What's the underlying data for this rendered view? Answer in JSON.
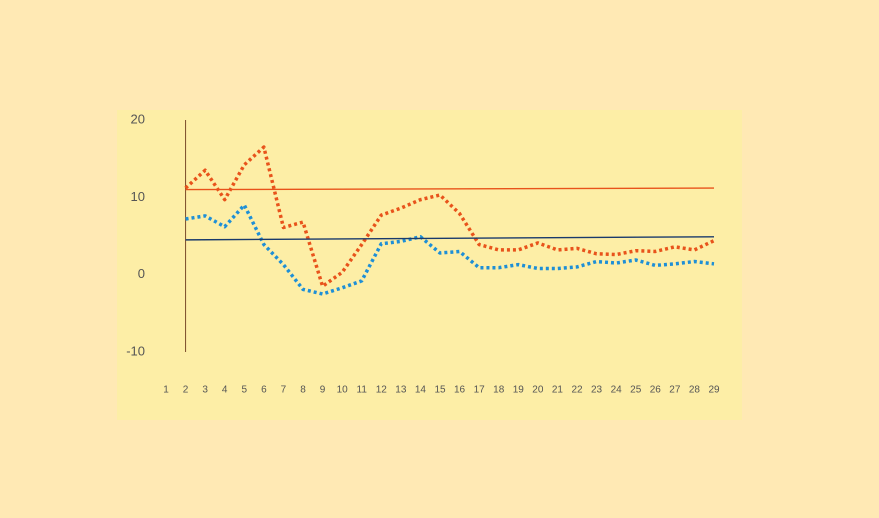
{
  "chart_data": {
    "type": "line",
    "x": [
      1,
      2,
      3,
      4,
      5,
      6,
      7,
      8,
      9,
      10,
      11,
      12,
      13,
      14,
      15,
      16,
      17,
      18,
      19,
      20,
      21,
      22,
      23,
      24,
      25,
      26,
      27,
      28,
      29
    ],
    "xlim": [
      1,
      29
    ],
    "ylim": [
      -10,
      20
    ],
    "yticks": [
      -10,
      0,
      10,
      20
    ],
    "series": [
      {
        "color": "#e8531b",
        "style": "dotted",
        "values": [
          null,
          11.2,
          13.5,
          9.7,
          14.2,
          16.5,
          6.1,
          6.8,
          -1.5,
          0.3,
          3.9,
          7.7,
          8.6,
          9.7,
          10.3,
          7.9,
          3.9,
          3.2,
          3.2,
          4.1,
          3.2,
          3.4,
          2.7,
          2.6,
          3.1,
          3.0,
          3.6,
          3.2,
          4.4
        ]
      },
      {
        "color": "#1e8fd6",
        "style": "dotted",
        "values": [
          null,
          7.2,
          7.6,
          6.2,
          9.0,
          3.9,
          1.3,
          -1.9,
          -2.5,
          -1.7,
          -0.8,
          4.0,
          4.3,
          4.9,
          2.8,
          3.0,
          0.9,
          0.9,
          1.3,
          0.8,
          0.8,
          1.0,
          1.7,
          1.5,
          1.9,
          1.2,
          1.4,
          1.7,
          1.4
        ]
      },
      {
        "color": "#e8531b",
        "style": "solid",
        "x": [
          2,
          29
        ],
        "values": [
          11.0,
          11.2
        ]
      },
      {
        "color": "#1a3a6b",
        "style": "solid",
        "x": [
          2,
          29
        ],
        "values": [
          4.5,
          4.9
        ]
      }
    ]
  }
}
